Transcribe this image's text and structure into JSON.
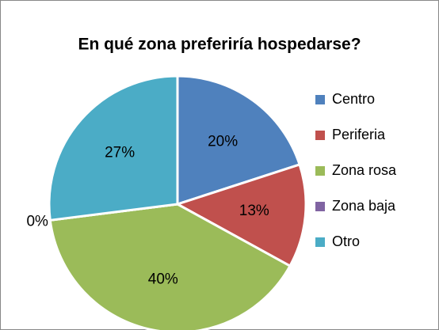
{
  "chart_data": {
    "type": "pie",
    "title": "En qué zona preferiría hospedarse?",
    "categories": [
      "Centro",
      "Periferia",
      "Zona rosa",
      "Zona baja",
      "Otro"
    ],
    "values": [
      20,
      13,
      40,
      0,
      27
    ],
    "value_labels": [
      "20%",
      "13%",
      "40%",
      "0%",
      "27%"
    ],
    "colors": [
      "#4f81bd",
      "#c0504d",
      "#9bbb59",
      "#8064a2",
      "#4bacc6"
    ],
    "legend": "right"
  }
}
